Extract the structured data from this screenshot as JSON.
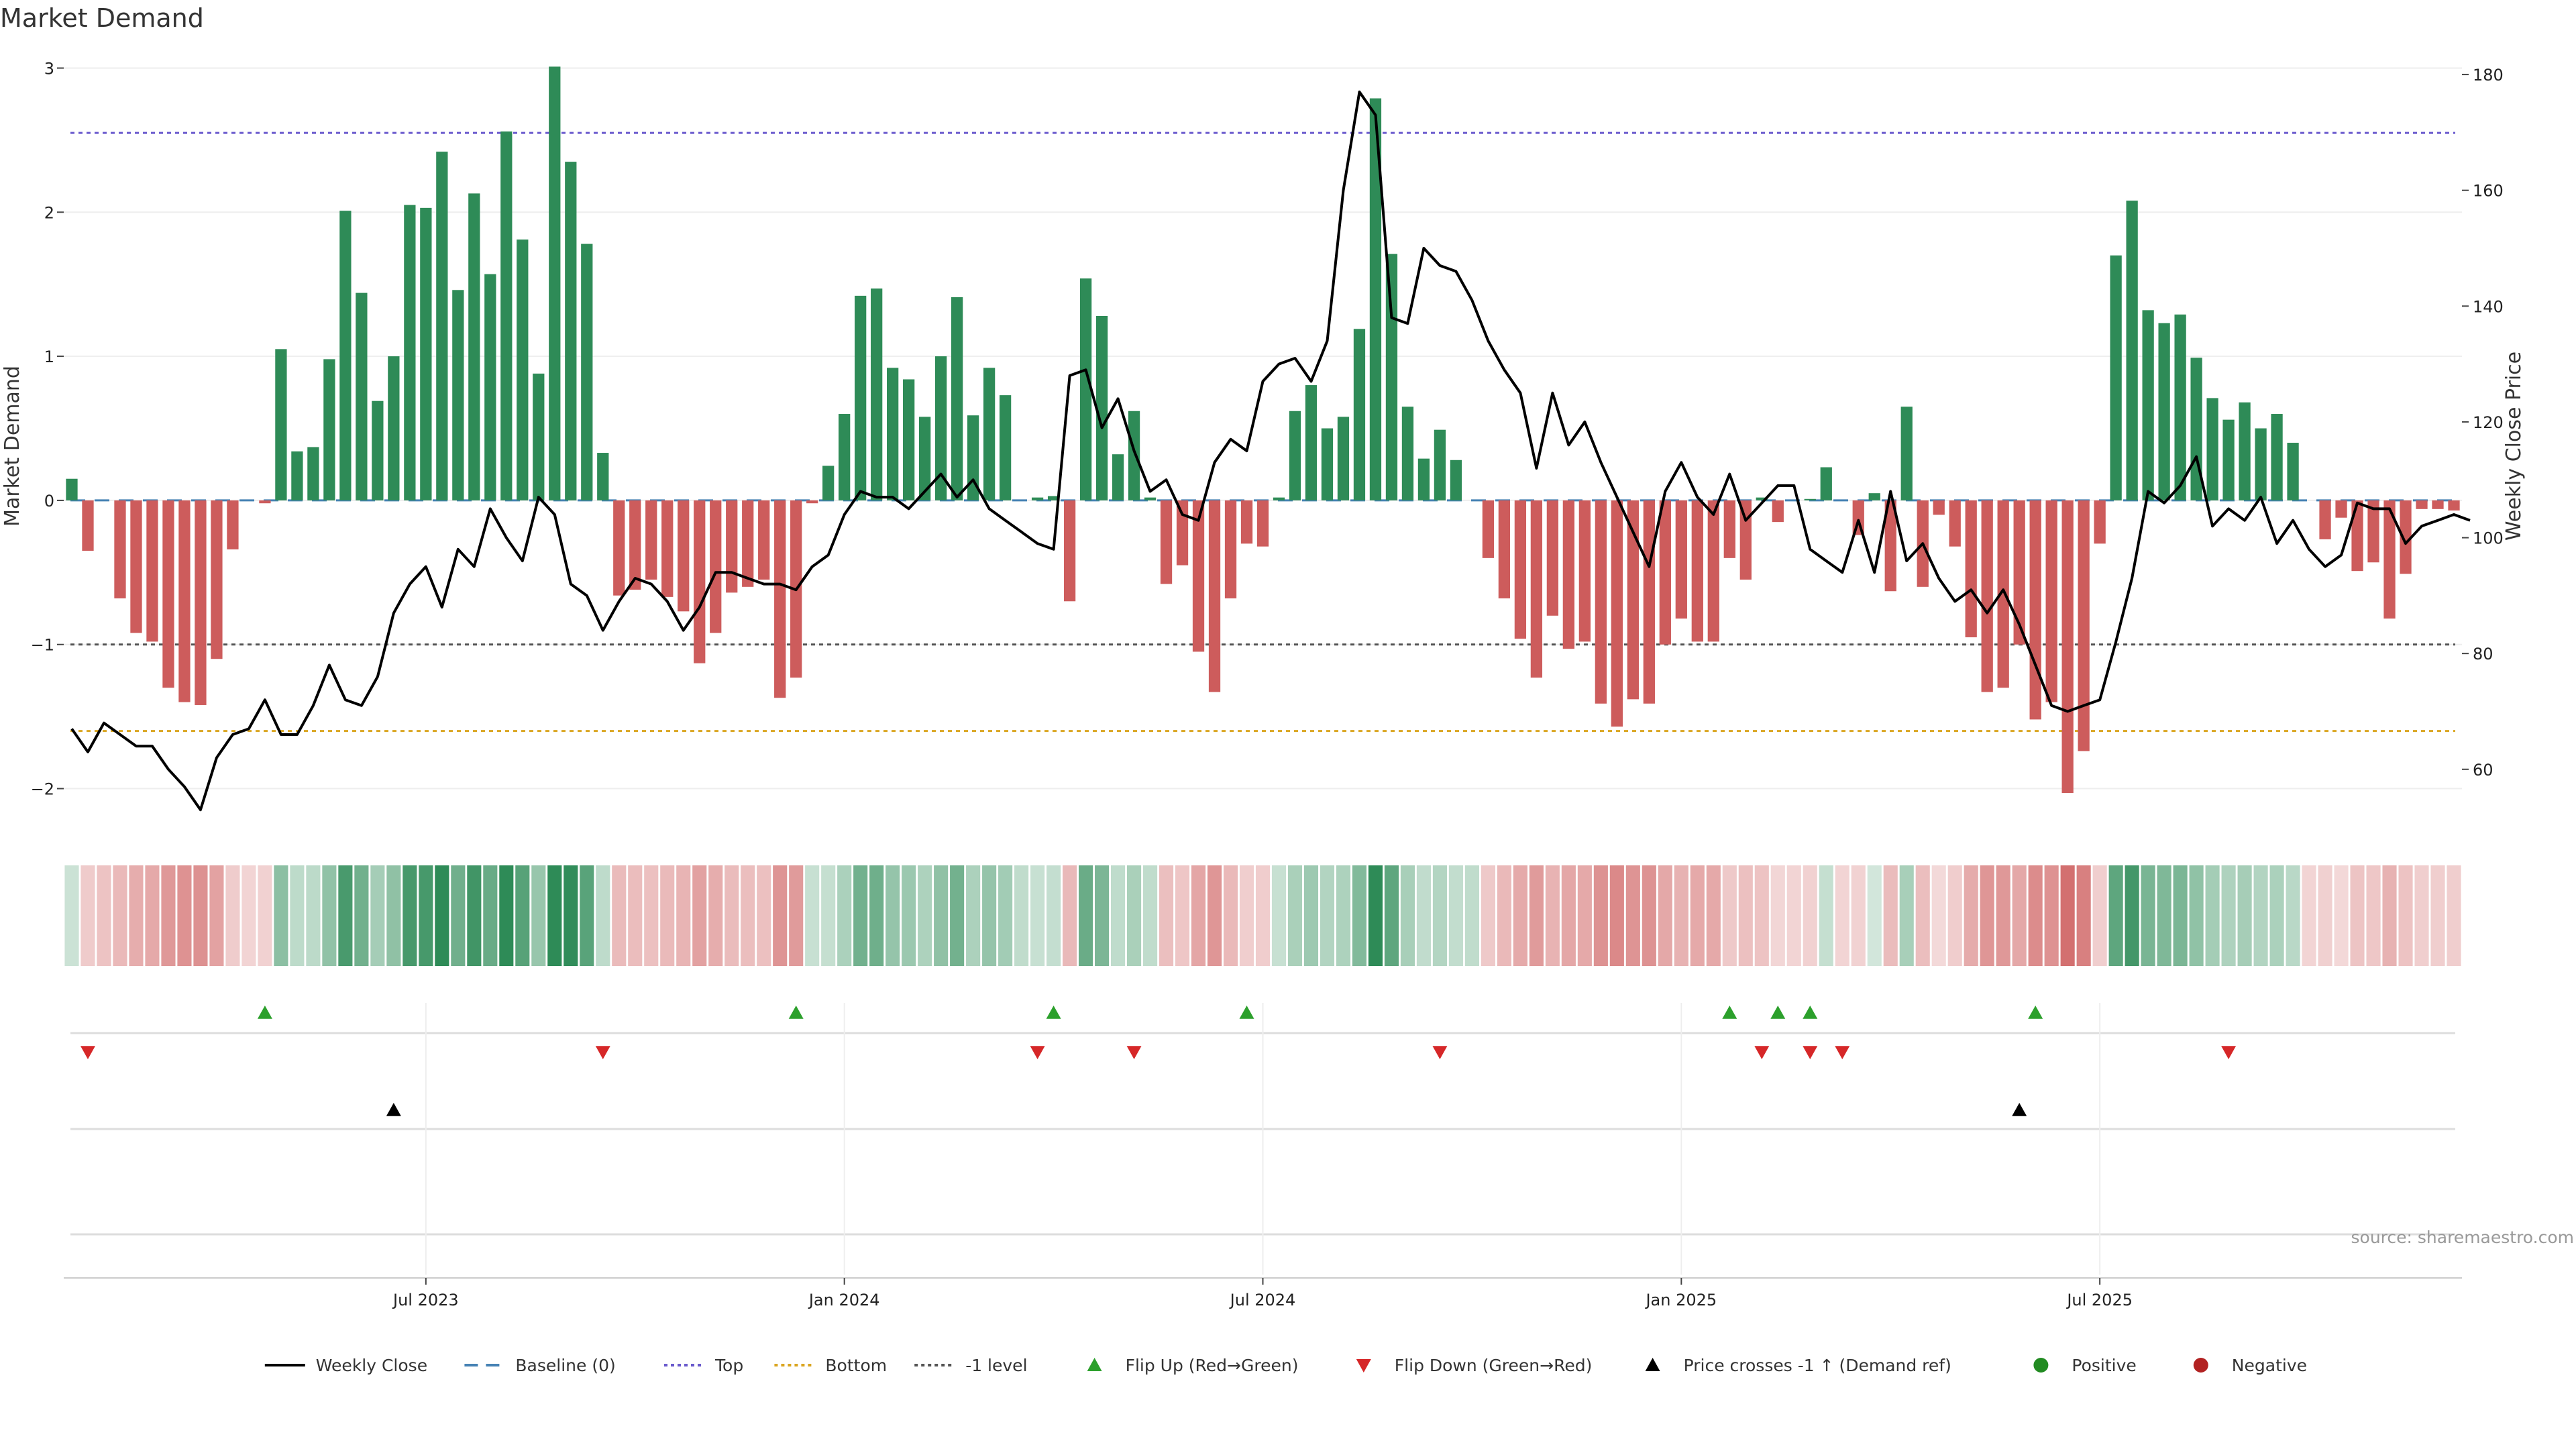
{
  "title": "Market Demand",
  "source": "source: sharemaestro.com",
  "colors": {
    "positive": "#2e8b57",
    "negative": "#cd5c5c",
    "price": "#000000",
    "top": "#6a5acd",
    "bottom": "#daa520",
    "minus1": "#555555",
    "baseline": "#4682b4",
    "flip_up": "#2ca02c",
    "flip_down": "#d62728"
  },
  "chart_data": {
    "type": "bar",
    "ylabel": "Market Demand",
    "y2label": "Weekly Close Price",
    "ylim": [
      -2.3,
      3.1
    ],
    "y2lim": [
      49.2,
      183.6
    ],
    "yticks": [
      {
        "value": -2,
        "label": "−2"
      },
      {
        "value": -1,
        "label": "−1"
      },
      {
        "value": 0,
        "label": "0"
      },
      {
        "value": 1,
        "label": "1"
      },
      {
        "value": 2,
        "label": "2"
      },
      {
        "value": 3,
        "label": "3"
      }
    ],
    "y2ticks": [
      {
        "value": 60,
        "label": "60"
      },
      {
        "value": 80,
        "label": "80"
      },
      {
        "value": 100,
        "label": "100"
      },
      {
        "value": 120,
        "label": "120"
      },
      {
        "value": 140,
        "label": "140"
      },
      {
        "value": 160,
        "label": "160"
      },
      {
        "value": 180,
        "label": "180"
      }
    ],
    "xticks": [
      {
        "index": 22,
        "label": "Jul 2023"
      },
      {
        "index": 48,
        "label": "Jan 2024"
      },
      {
        "index": 74,
        "label": "Jul 2024"
      },
      {
        "index": 100,
        "label": "Jan 2025"
      },
      {
        "index": 126,
        "label": "Jul 2025"
      }
    ],
    "reference_lines": {
      "top": 2.55,
      "bottom": -1.6,
      "minus1": -1.0,
      "baseline": 0
    },
    "demand": [
      0.15,
      -0.35,
      0,
      -0.68,
      -0.92,
      -0.98,
      -1.3,
      -1.4,
      -1.42,
      -1.1,
      -0.34,
      0,
      -0.02,
      1.05,
      0.34,
      0.37,
      0.98,
      2.01,
      1.44,
      0.69,
      1.0,
      2.05,
      2.03,
      2.42,
      1.46,
      2.13,
      1.57,
      2.56,
      1.81,
      0.88,
      3.01,
      2.35,
      1.78,
      0.33,
      -0.66,
      -0.62,
      -0.55,
      -0.67,
      -0.77,
      -1.13,
      -0.92,
      -0.64,
      -0.6,
      -0.55,
      -1.37,
      -1.23,
      -0.02,
      0.24,
      0.6,
      1.42,
      1.47,
      0.92,
      0.84,
      0.58,
      1.0,
      1.41,
      0.59,
      0.92,
      0.73,
      0,
      0.02,
      0.03,
      -0.7,
      1.54,
      1.28,
      0.32,
      0.62,
      0.02,
      -0.58,
      -0.45,
      -1.05,
      -1.33,
      -0.68,
      -0.3,
      -0.32,
      0.02,
      0.62,
      0.8,
      0.5,
      0.58,
      1.19,
      2.79,
      1.71,
      0.65,
      0.29,
      0.49,
      0.28,
      0,
      -0.4,
      -0.68,
      -0.96,
      -1.23,
      -0.8,
      -1.03,
      -0.98,
      -1.41,
      -1.57,
      -1.38,
      -1.41,
      -1.0,
      -0.82,
      -0.98,
      -0.98,
      -0.4,
      -0.55,
      0.02,
      -0.15,
      0,
      0.01,
      0.23,
      0,
      -0.24,
      0.05,
      -0.63,
      0.65,
      -0.6,
      -0.1,
      -0.32,
      -0.95,
      -1.33,
      -1.3,
      -1.0,
      -1.52,
      -1.4,
      -2.03,
      -1.74,
      -0.3,
      1.7,
      2.08,
      1.32,
      1.23,
      1.29,
      0.99,
      0.71,
      0.56,
      0.68,
      0.5,
      0.6,
      0.4,
      0,
      -0.27,
      -0.12,
      -0.49,
      -0.43,
      -0.82,
      -0.51,
      -0.06,
      -0.06,
      -0.07
    ],
    "price": [
      67,
      63,
      68,
      66,
      64,
      64,
      60,
      57,
      53,
      62,
      66,
      67,
      72,
      66,
      66,
      71,
      78,
      72,
      71,
      76,
      87,
      92,
      95,
      88,
      98,
      95,
      105,
      100,
      96,
      107,
      104,
      92,
      90,
      84,
      89,
      93,
      92,
      89,
      84,
      88,
      94,
      94,
      93,
      92,
      92,
      91,
      95,
      97,
      104,
      108,
      107,
      107,
      105,
      108,
      111,
      107,
      110,
      105,
      103,
      101,
      99,
      98,
      128,
      129,
      119,
      124,
      115,
      108,
      110,
      104,
      103,
      113,
      117,
      115,
      127,
      130,
      131,
      127,
      134,
      160,
      177,
      173,
      138,
      137,
      150,
      147,
      146,
      141,
      134,
      129,
      125,
      112,
      125,
      116,
      120,
      113,
      107,
      101,
      95,
      108,
      113,
      107,
      104,
      111,
      103,
      106,
      109,
      109,
      98,
      96,
      94,
      103,
      94,
      108,
      96,
      99,
      93,
      89,
      91,
      87,
      91,
      85,
      78,
      71,
      70,
      71,
      72,
      82,
      93,
      108,
      106,
      109,
      114,
      102,
      105,
      103,
      107,
      99,
      103,
      98,
      95,
      97,
      106,
      105,
      105,
      99,
      102,
      103,
      104,
      103
    ]
  },
  "strip": {
    "values": [
      0.15,
      -0.35,
      -0.5,
      -0.68,
      -0.92,
      -0.98,
      -1.3,
      -1.4,
      -1.42,
      -1.1,
      -0.34,
      -0.2,
      -0.25,
      1.05,
      0.34,
      0.37,
      0.98,
      2.01,
      1.44,
      0.69,
      1.0,
      2.05,
      2.03,
      2.42,
      1.46,
      2.13,
      1.57,
      2.56,
      1.81,
      0.88,
      3.01,
      2.35,
      1.78,
      0.33,
      -0.66,
      -0.62,
      -0.55,
      -0.67,
      -0.77,
      -1.13,
      -0.92,
      -0.64,
      -0.6,
      -0.55,
      -1.37,
      -1.23,
      0.2,
      0.24,
      0.6,
      1.42,
      1.47,
      0.92,
      0.84,
      0.58,
      1.0,
      1.41,
      0.59,
      0.92,
      0.73,
      0.3,
      0.2,
      0.25,
      -0.7,
      1.54,
      1.28,
      0.32,
      0.62,
      0.3,
      -0.58,
      -0.45,
      -1.05,
      -1.33,
      -0.68,
      -0.3,
      -0.32,
      0.2,
      0.62,
      0.8,
      0.5,
      0.58,
      1.19,
      2.79,
      1.71,
      0.65,
      0.29,
      0.49,
      0.28,
      0.3,
      -0.4,
      -0.68,
      -0.96,
      -1.23,
      -0.8,
      -1.03,
      -0.98,
      -1.41,
      -1.57,
      -1.38,
      -1.41,
      -1.0,
      -0.82,
      -0.98,
      -0.98,
      -0.4,
      -0.55,
      -0.5,
      -0.15,
      -0.2,
      -0.25,
      0.23,
      -0.2,
      -0.24,
      0.05,
      -0.63,
      0.65,
      -0.6,
      -0.1,
      -0.32,
      -0.95,
      -1.33,
      -1.3,
      -1.0,
      -1.52,
      -1.4,
      -2.03,
      -1.74,
      -0.3,
      1.7,
      2.08,
      1.32,
      1.23,
      1.29,
      0.99,
      0.71,
      0.56,
      0.68,
      0.5,
      0.6,
      0.4,
      -0.2,
      -0.27,
      -0.12,
      -0.49,
      -0.43,
      -0.82,
      -0.51,
      -0.3,
      -0.3,
      -0.3
    ]
  },
  "events": {
    "flip_up": [
      12,
      45,
      61,
      73,
      103,
      106,
      108,
      122
    ],
    "flip_down": [
      1,
      33,
      60,
      66,
      85,
      105,
      108,
      110,
      134
    ],
    "price_cross": [
      20,
      121
    ]
  },
  "legend": [
    {
      "key": "weekly_close",
      "label": "Weekly Close",
      "kind": "line"
    },
    {
      "key": "baseline",
      "label": "Baseline (0)",
      "kind": "dash"
    },
    {
      "key": "top",
      "label": "Top",
      "kind": "dot"
    },
    {
      "key": "bottom",
      "label": "Bottom",
      "kind": "dot"
    },
    {
      "key": "minus1",
      "label": "-1 level",
      "kind": "dot"
    },
    {
      "key": "flip_up",
      "label": "Flip Up (Red→Green)",
      "kind": "tri-up"
    },
    {
      "key": "flip_down",
      "label": "Flip Down (Green→Red)",
      "kind": "tri-down"
    },
    {
      "key": "price_cross",
      "label": "Price crosses -1 ↑ (Demand ref)",
      "kind": "tri-up-black"
    },
    {
      "key": "positive",
      "label": "Positive",
      "kind": "circle-green"
    },
    {
      "key": "negative",
      "label": "Negative",
      "kind": "circle-red"
    }
  ]
}
